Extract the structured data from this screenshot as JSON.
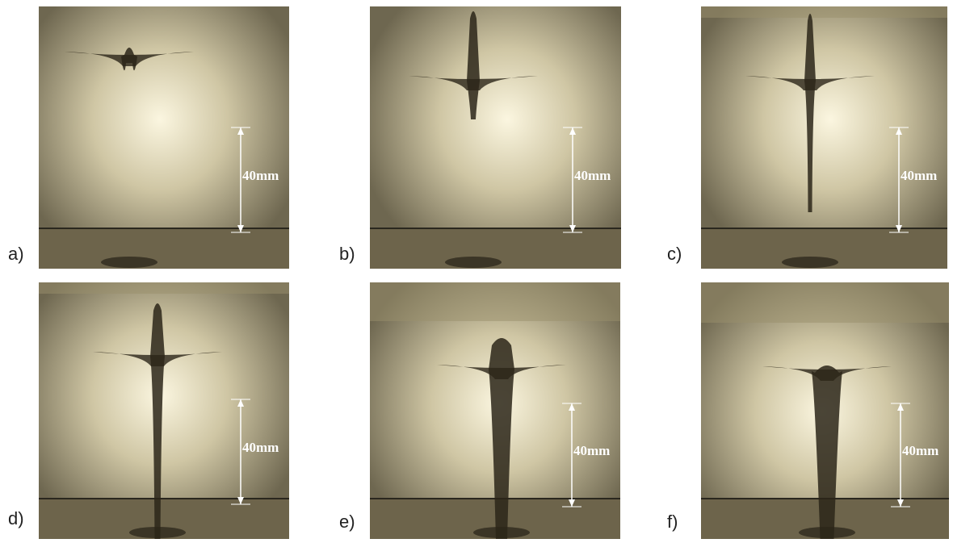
{
  "panels": [
    {
      "label": "a)",
      "scale": "40mm"
    },
    {
      "label": "b)",
      "scale": "40mm"
    },
    {
      "label": "c)",
      "scale": "40mm"
    },
    {
      "label": "d)",
      "scale": "40mm"
    },
    {
      "label": "e)",
      "scale": "40mm"
    },
    {
      "label": "f)",
      "scale": "40mm"
    }
  ]
}
